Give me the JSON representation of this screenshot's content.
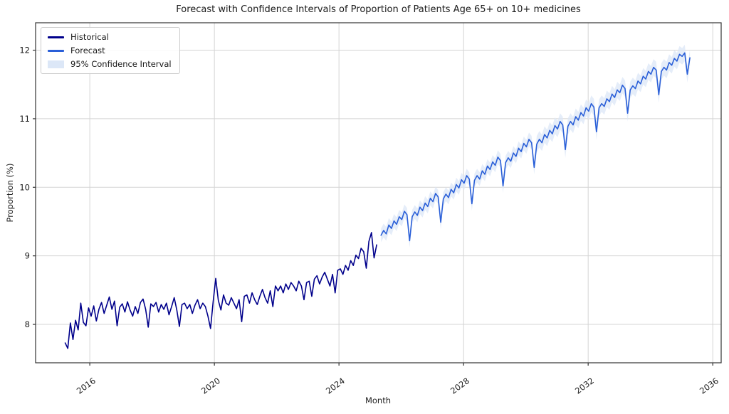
{
  "figure": {
    "title": "Forecast with Confidence Intervals of Proportion of Patients Age 65+ on 10+ medicines",
    "xlabel": "Month",
    "ylabel": "Proportion (%)"
  },
  "legend": {
    "position": "upper left",
    "items": [
      {
        "label": "Historical",
        "color": "#00008b",
        "swatch": "line"
      },
      {
        "label": "Forecast",
        "color": "#2a5fd8",
        "swatch": "line"
      },
      {
        "label": "95% Confidence Interval",
        "color": "#dce7f7",
        "swatch": "patch"
      }
    ]
  },
  "chart_data": {
    "type": "line",
    "title": "Forecast with Confidence Intervals of Proportion of Patients Age 65+ on 10+ medicines",
    "xlabel": "Month",
    "ylabel": "Proportion (%)",
    "xlim": [
      2014.26,
      2036.27
    ],
    "ylim": [
      7.44,
      12.4
    ],
    "x_ticks": [
      2016,
      2020,
      2024,
      2028,
      2032,
      2036
    ],
    "y_ticks": [
      8,
      9,
      10,
      11,
      12
    ],
    "grid": true,
    "legend_position": "upper left",
    "x_unit": "monthly points expressed as decimal years (x = x_start + i * x_step)",
    "colors": {
      "grid": "#d4d4d4",
      "frame": "#333333",
      "band_fill": "#dce7f7"
    },
    "series": [
      {
        "name": "Historical",
        "color": "#00008b",
        "x_start": 2015.21,
        "x_step": 0.083333,
        "values": [
          7.73,
          7.65,
          8.02,
          7.78,
          8.06,
          7.92,
          8.31,
          8.03,
          7.98,
          8.24,
          8.12,
          8.27,
          8.05,
          8.22,
          8.32,
          8.16,
          8.28,
          8.4,
          8.22,
          8.34,
          7.98,
          8.25,
          8.3,
          8.18,
          8.33,
          8.21,
          8.12,
          8.26,
          8.16,
          8.32,
          8.37,
          8.22,
          7.96,
          8.3,
          8.26,
          8.32,
          8.18,
          8.29,
          8.22,
          8.31,
          8.14,
          8.26,
          8.39,
          8.21,
          7.97,
          8.29,
          8.31,
          8.23,
          8.29,
          8.16,
          8.28,
          8.36,
          8.23,
          8.31,
          8.26,
          8.12,
          7.94,
          8.33,
          8.67,
          8.35,
          8.21,
          8.43,
          8.31,
          8.28,
          8.39,
          8.31,
          8.23,
          8.36,
          8.04,
          8.41,
          8.43,
          8.31,
          8.46,
          8.36,
          8.29,
          8.41,
          8.51,
          8.39,
          8.31,
          8.49,
          8.26,
          8.56,
          8.49,
          8.56,
          8.46,
          8.59,
          8.51,
          8.61,
          8.56,
          8.49,
          8.63,
          8.56,
          8.36,
          8.61,
          8.63,
          8.41,
          8.66,
          8.71,
          8.59,
          8.69,
          8.76,
          8.66,
          8.56,
          8.73,
          8.46,
          8.79,
          8.81,
          8.73,
          8.86,
          8.79,
          8.93,
          8.86,
          9.01,
          8.96,
          9.11,
          9.06,
          8.82,
          9.21,
          9.34,
          8.97,
          9.16
        ]
      },
      {
        "name": "Forecast",
        "color": "#2a5fd8",
        "x_start": 2025.35,
        "x_step": 0.083333,
        "values": [
          9.3,
          9.37,
          9.32,
          9.45,
          9.4,
          9.51,
          9.46,
          9.57,
          9.53,
          9.65,
          9.6,
          9.22,
          9.57,
          9.64,
          9.59,
          9.71,
          9.66,
          9.77,
          9.72,
          9.84,
          9.79,
          9.91,
          9.86,
          9.49,
          9.83,
          9.9,
          9.85,
          9.97,
          9.92,
          10.04,
          9.99,
          10.11,
          10.06,
          10.17,
          10.12,
          9.76,
          10.1,
          10.17,
          10.12,
          10.24,
          10.19,
          10.31,
          10.26,
          10.37,
          10.32,
          10.44,
          10.39,
          10.02,
          10.36,
          10.43,
          10.38,
          10.5,
          10.45,
          10.57,
          10.52,
          10.64,
          10.59,
          10.7,
          10.65,
          10.29,
          10.63,
          10.7,
          10.65,
          10.77,
          10.72,
          10.83,
          10.78,
          10.9,
          10.85,
          10.96,
          10.91,
          10.55,
          10.89,
          10.96,
          10.91,
          11.03,
          10.98,
          11.09,
          11.04,
          11.16,
          11.11,
          11.22,
          11.17,
          10.81,
          11.16,
          11.22,
          11.18,
          11.29,
          11.25,
          11.36,
          11.31,
          11.42,
          11.38,
          11.49,
          11.44,
          11.08,
          11.42,
          11.48,
          11.44,
          11.55,
          11.51,
          11.62,
          11.58,
          11.69,
          11.65,
          11.75,
          11.71,
          11.35,
          11.69,
          11.75,
          11.71,
          11.82,
          11.78,
          11.88,
          11.84,
          11.94,
          11.91,
          11.96,
          11.65,
          11.89
        ]
      },
      {
        "name": "95% Confidence Interval",
        "type": "band",
        "color": "#dce7f7",
        "x_start": 2025.35,
        "x_step": 0.083333,
        "lower": [
          9.2,
          9.27,
          9.22,
          9.35,
          9.3,
          9.41,
          9.36,
          9.47,
          9.43,
          9.55,
          9.5,
          9.12,
          9.47,
          9.54,
          9.49,
          9.61,
          9.56,
          9.67,
          9.62,
          9.74,
          9.69,
          9.81,
          9.76,
          9.39,
          9.73,
          9.8,
          9.75,
          9.87,
          9.82,
          9.94,
          9.89,
          10.01,
          9.96,
          10.07,
          10.02,
          9.66,
          10.0,
          10.07,
          10.02,
          10.14,
          10.09,
          10.21,
          10.16,
          10.27,
          10.22,
          10.34,
          10.29,
          9.92,
          10.26,
          10.33,
          10.28,
          10.4,
          10.35,
          10.47,
          10.42,
          10.54,
          10.49,
          10.6,
          10.55,
          10.19,
          10.51,
          10.58,
          10.53,
          10.65,
          10.6,
          10.71,
          10.66,
          10.78,
          10.73,
          10.84,
          10.79,
          10.43,
          10.77,
          10.84,
          10.79,
          10.91,
          10.86,
          10.97,
          10.92,
          11.04,
          10.99,
          11.1,
          11.05,
          10.69,
          11.04,
          11.1,
          11.06,
          11.17,
          11.13,
          11.24,
          11.19,
          11.3,
          11.26,
          11.37,
          11.32,
          10.96,
          11.3,
          11.36,
          11.32,
          11.43,
          11.39,
          11.5,
          11.46,
          11.57,
          11.53,
          11.63,
          11.59,
          11.23,
          11.57,
          11.63,
          11.59,
          11.7,
          11.66,
          11.76,
          11.72,
          11.82,
          11.79,
          11.84,
          11.53,
          11.77
        ],
        "upper": [
          9.4,
          9.47,
          9.42,
          9.55,
          9.5,
          9.61,
          9.56,
          9.67,
          9.63,
          9.75,
          9.7,
          9.32,
          9.67,
          9.74,
          9.69,
          9.81,
          9.76,
          9.87,
          9.82,
          9.94,
          9.89,
          10.01,
          9.96,
          9.59,
          9.93,
          10.0,
          9.95,
          10.07,
          10.02,
          10.14,
          10.09,
          10.21,
          10.16,
          10.27,
          10.22,
          9.86,
          10.2,
          10.27,
          10.22,
          10.34,
          10.29,
          10.41,
          10.36,
          10.47,
          10.42,
          10.54,
          10.49,
          10.12,
          10.46,
          10.53,
          10.48,
          10.6,
          10.55,
          10.67,
          10.62,
          10.74,
          10.69,
          10.8,
          10.75,
          10.39,
          10.75,
          10.82,
          10.77,
          10.89,
          10.84,
          10.95,
          10.9,
          11.02,
          10.97,
          11.08,
          11.03,
          10.67,
          11.01,
          11.08,
          11.03,
          11.15,
          11.1,
          11.21,
          11.16,
          11.28,
          11.23,
          11.34,
          11.29,
          10.93,
          11.28,
          11.34,
          11.3,
          11.41,
          11.37,
          11.48,
          11.43,
          11.54,
          11.5,
          11.61,
          11.56,
          11.2,
          11.54,
          11.6,
          11.56,
          11.67,
          11.63,
          11.74,
          11.7,
          11.81,
          11.77,
          11.87,
          11.83,
          11.47,
          11.81,
          11.87,
          11.83,
          11.94,
          11.9,
          12.0,
          11.96,
          12.06,
          12.03,
          12.08,
          11.77,
          12.01
        ]
      }
    ]
  }
}
